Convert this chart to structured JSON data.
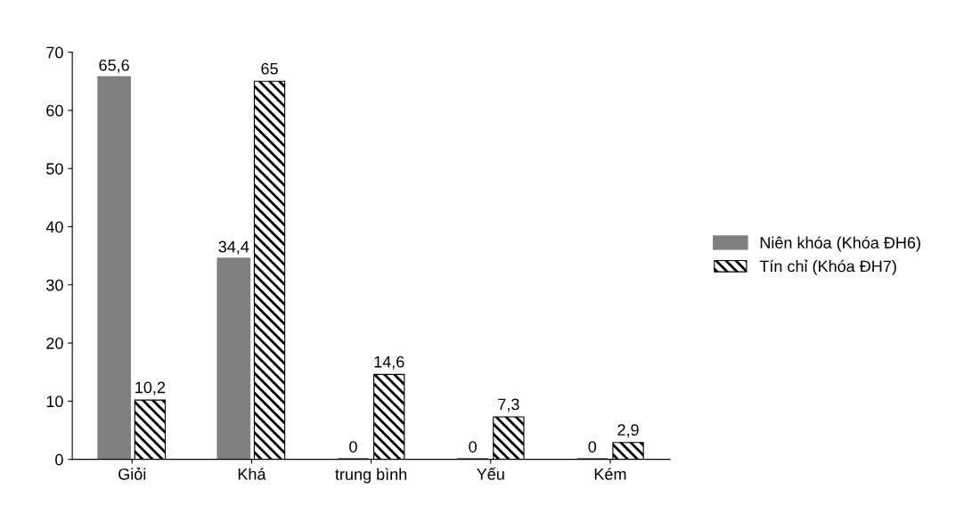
{
  "chart_data": {
    "type": "bar",
    "categories": [
      "Giỏi",
      "Khá",
      "trung bình",
      "Yếu",
      "Kém"
    ],
    "series": [
      {
        "name": "Niên khóa (Khóa ĐH6)",
        "color": "#808080",
        "values": [
          65.6,
          34.4,
          0,
          0,
          0
        ],
        "value_labels": [
          "65,6",
          "34,4",
          "0",
          "0",
          "0"
        ]
      },
      {
        "name": "Tín chỉ (Khóa ĐH7)",
        "color": "#000000",
        "values": [
          10.2,
          65,
          14.6,
          7.3,
          2.9
        ],
        "value_labels": [
          "10,2",
          "65",
          "14,6",
          "7,3",
          "2,9"
        ]
      }
    ],
    "ylim": [
      0,
      70
    ],
    "yticks": [
      0,
      10,
      20,
      30,
      40,
      50,
      60,
      70
    ],
    "grid": false,
    "legend": "right"
  }
}
